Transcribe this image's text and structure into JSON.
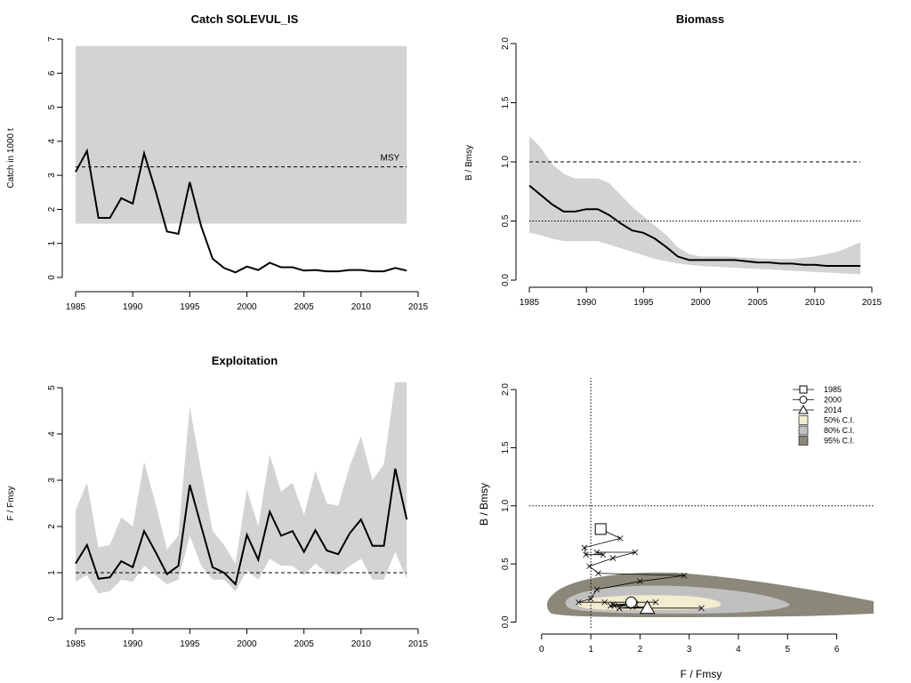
{
  "chart_data": [
    {
      "type": "line",
      "title": "Catch SOLEVUL_IS",
      "xlabel": "",
      "ylabel": "Catch in 1000 t",
      "xlim": [
        1985,
        2015
      ],
      "ylim": [
        0,
        7
      ],
      "xticks": [
        1985,
        1990,
        1995,
        2000,
        2005,
        2010,
        2015
      ],
      "yticks": [
        0,
        1,
        2,
        3,
        4,
        5,
        6,
        7
      ],
      "msy_band": {
        "low": 1.58,
        "high": 6.8
      },
      "msy": {
        "label": "MSY",
        "value": 3.25
      },
      "series": [
        {
          "x": [
            1985,
            1986,
            1987,
            1988,
            1989,
            1990,
            1991,
            1992,
            1993,
            1994,
            1995,
            1996,
            1997,
            1998,
            1999,
            2000,
            2001,
            2002,
            2003,
            2004,
            2005,
            2006,
            2007,
            2008,
            2009,
            2010,
            2011,
            2012,
            2013,
            2014
          ],
          "values": [
            3.1,
            3.72,
            1.75,
            1.75,
            2.33,
            2.17,
            3.65,
            2.55,
            1.35,
            1.28,
            2.8,
            1.5,
            0.55,
            0.28,
            0.15,
            0.32,
            0.22,
            0.43,
            0.3,
            0.3,
            0.2,
            0.22,
            0.18,
            0.18,
            0.22,
            0.22,
            0.18,
            0.18,
            0.28,
            0.2
          ]
        }
      ]
    },
    {
      "type": "line",
      "title": "Biomass",
      "xlabel": "",
      "ylabel": "B / Bmsy",
      "xlim": [
        1985,
        2015
      ],
      "ylim": [
        0,
        2.0
      ],
      "xticks": [
        1985,
        1990,
        1995,
        2000,
        2005,
        2010,
        2015
      ],
      "yticks": [
        "0.0",
        "0.5",
        "1.0",
        "1.5",
        "2.0"
      ],
      "reference_lines": [
        1.0,
        0.5
      ],
      "ci_band": {
        "x": [
          1985,
          1986,
          1987,
          1988,
          1989,
          1990,
          1991,
          1992,
          1993,
          1994,
          1995,
          1996,
          1997,
          1998,
          1999,
          2000,
          2002,
          2004,
          2006,
          2008,
          2010,
          2012,
          2014
        ],
        "upper": [
          1.22,
          1.12,
          0.98,
          0.9,
          0.86,
          0.86,
          0.86,
          0.82,
          0.72,
          0.62,
          0.54,
          0.46,
          0.38,
          0.28,
          0.22,
          0.2,
          0.2,
          0.19,
          0.18,
          0.18,
          0.2,
          0.24,
          0.32
        ],
        "lower": [
          0.4,
          0.38,
          0.35,
          0.33,
          0.33,
          0.33,
          0.33,
          0.3,
          0.27,
          0.24,
          0.21,
          0.18,
          0.16,
          0.14,
          0.13,
          0.12,
          0.11,
          0.1,
          0.09,
          0.08,
          0.07,
          0.06,
          0.05
        ]
      },
      "series": [
        {
          "x": [
            1985,
            1986,
            1987,
            1988,
            1989,
            1990,
            1991,
            1992,
            1993,
            1994,
            1995,
            1996,
            1997,
            1998,
            1999,
            2000,
            2001,
            2002,
            2003,
            2004,
            2005,
            2006,
            2007,
            2008,
            2009,
            2010,
            2011,
            2012,
            2013,
            2014
          ],
          "values": [
            0.8,
            0.72,
            0.64,
            0.58,
            0.58,
            0.6,
            0.6,
            0.55,
            0.48,
            0.42,
            0.4,
            0.35,
            0.28,
            0.2,
            0.17,
            0.17,
            0.17,
            0.17,
            0.17,
            0.16,
            0.15,
            0.15,
            0.14,
            0.14,
            0.13,
            0.13,
            0.12,
            0.12,
            0.12,
            0.12
          ]
        }
      ]
    },
    {
      "type": "line",
      "title": "Exploitation",
      "xlabel": "",
      "ylabel": "F / Fmsy",
      "xlim": [
        1985,
        2015
      ],
      "ylim": [
        0,
        5
      ],
      "xticks": [
        1985,
        1990,
        1995,
        2000,
        2005,
        2010,
        2015
      ],
      "yticks": [
        0,
        1,
        2,
        3,
        4,
        5
      ],
      "reference_lines": [
        1.0
      ],
      "ci_band": {
        "x": [
          1985,
          1986,
          1987,
          1988,
          1989,
          1990,
          1991,
          1992,
          1993,
          1994,
          1995,
          1996,
          1997,
          1998,
          1999,
          2000,
          2001,
          2002,
          2003,
          2004,
          2005,
          2006,
          2007,
          2008,
          2009,
          2010,
          2011,
          2012,
          2013,
          2014
        ],
        "upper": [
          2.35,
          2.95,
          1.55,
          1.6,
          2.2,
          2.0,
          3.4,
          2.5,
          1.5,
          1.8,
          4.6,
          3.2,
          1.9,
          1.6,
          1.2,
          2.8,
          2.0,
          3.55,
          2.75,
          2.95,
          2.25,
          3.2,
          2.5,
          2.45,
          3.3,
          3.95,
          3.0,
          3.35,
          5.3,
          5.3
        ],
        "lower": [
          0.8,
          0.95,
          0.55,
          0.6,
          0.85,
          0.8,
          1.15,
          0.95,
          0.75,
          0.85,
          1.8,
          1.15,
          0.85,
          0.85,
          0.6,
          1.05,
          0.85,
          1.3,
          1.15,
          1.15,
          0.95,
          1.2,
          1.0,
          0.95,
          1.15,
          1.3,
          0.85,
          0.85,
          1.45,
          0.85
        ]
      },
      "series": [
        {
          "x": [
            1985,
            1986,
            1987,
            1988,
            1989,
            1990,
            1991,
            1992,
            1993,
            1994,
            1995,
            1996,
            1997,
            1998,
            1999,
            2000,
            2001,
            2002,
            2003,
            2004,
            2005,
            2006,
            2007,
            2008,
            2009,
            2010,
            2011,
            2012,
            2013,
            2014
          ],
          "values": [
            1.2,
            1.6,
            0.87,
            0.9,
            1.25,
            1.12,
            1.9,
            1.45,
            0.97,
            1.15,
            2.9,
            2.0,
            1.12,
            1.0,
            0.75,
            1.82,
            1.28,
            2.32,
            1.8,
            1.9,
            1.45,
            1.92,
            1.48,
            1.4,
            1.85,
            2.15,
            1.58,
            1.58,
            3.25,
            2.15
          ]
        }
      ]
    },
    {
      "type": "scatter",
      "title": "",
      "xlabel": "F / Fmsy",
      "ylabel": "B / Bmsy",
      "xlim": [
        -0.25,
        6.75
      ],
      "ylim": [
        -0.05,
        2.1
      ],
      "xticks": [
        0,
        1,
        2,
        3,
        4,
        5,
        6
      ],
      "yticks": [
        "0.0",
        "0.5",
        "1.0",
        "1.5",
        "2.0"
      ],
      "reference_lines": {
        "x": 1.0,
        "y": 1.0
      },
      "trajectory": {
        "F": [
          1.2,
          1.6,
          0.87,
          0.9,
          1.25,
          1.12,
          1.9,
          1.45,
          0.97,
          1.15,
          2.9,
          2.0,
          1.12,
          1.0,
          0.75,
          1.82,
          1.28,
          2.32,
          1.8,
          1.9,
          1.45,
          1.92,
          1.48,
          1.4,
          1.85,
          2.15,
          1.58,
          1.58,
          3.25,
          2.15
        ],
        "B": [
          0.8,
          0.72,
          0.64,
          0.58,
          0.58,
          0.6,
          0.6,
          0.55,
          0.48,
          0.42,
          0.4,
          0.35,
          0.28,
          0.2,
          0.17,
          0.17,
          0.17,
          0.17,
          0.17,
          0.16,
          0.15,
          0.15,
          0.14,
          0.14,
          0.13,
          0.13,
          0.12,
          0.12,
          0.12,
          0.12
        ]
      },
      "highlights": [
        {
          "label": "1985",
          "marker": "square",
          "F": 1.2,
          "B": 0.8
        },
        {
          "label": "2000",
          "marker": "circle",
          "F": 1.82,
          "B": 0.17
        },
        {
          "label": "2014",
          "marker": "triangle",
          "F": 2.15,
          "B": 0.12
        }
      ],
      "confidence_regions": [
        {
          "label": "95% C.I.",
          "color": "#8c8879"
        },
        {
          "label": "80% C.I.",
          "color": "#c0c0c0"
        },
        {
          "label": "50% C.I.",
          "color": "#f2ecd0"
        }
      ],
      "legend_position": "top-right"
    }
  ]
}
